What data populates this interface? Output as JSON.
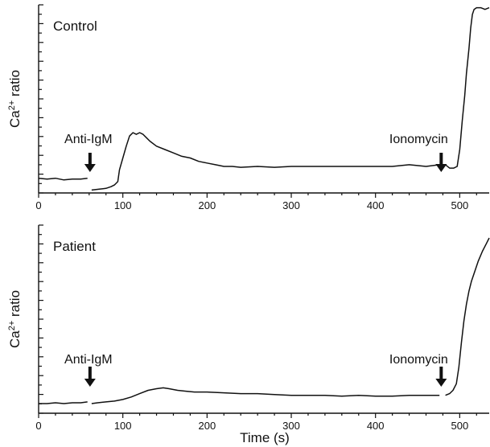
{
  "chart_data": [
    {
      "type": "line",
      "title": "Control",
      "xlabel": "",
      "ylabel": "Ca2+ ratio",
      "ylabel_parts": {
        "base": "Ca",
        "sup": "2+",
        "rest": " ratio"
      },
      "xlim": [
        0,
        535
      ],
      "ylim": [
        0,
        1
      ],
      "xticks": [
        0,
        100,
        200,
        300,
        400,
        500
      ],
      "ytick_count": 20,
      "annotations": [
        {
          "label": "Anti-IgM",
          "x": 61
        },
        {
          "label": "Ionomycin",
          "x": 478
        }
      ],
      "segments": [
        {
          "x": [
            0,
            10,
            20,
            30,
            40,
            50,
            58
          ],
          "y": [
            0.03,
            0.025,
            0.03,
            0.02,
            0.025,
            0.025,
            0.03
          ]
        },
        {
          "x": [
            63,
            72,
            80,
            86,
            90,
            94,
            96,
            100,
            104,
            108,
            112,
            116,
            120,
            124,
            128,
            132,
            140,
            150,
            160,
            170,
            180,
            190,
            200,
            210,
            220,
            230,
            240,
            260,
            280,
            300,
            320,
            340,
            360,
            380,
            400,
            420,
            440,
            460,
            476
          ],
          "y": [
            -0.04,
            -0.035,
            -0.03,
            -0.02,
            -0.01,
            0.01,
            0.08,
            0.15,
            0.22,
            0.28,
            0.3,
            0.29,
            0.3,
            0.29,
            0.27,
            0.25,
            0.22,
            0.2,
            0.18,
            0.16,
            0.15,
            0.13,
            0.12,
            0.11,
            0.1,
            0.1,
            0.095,
            0.1,
            0.095,
            0.1,
            0.1,
            0.1,
            0.1,
            0.1,
            0.1,
            0.1,
            0.11,
            0.1,
            0.11
          ]
        },
        {
          "x": [
            483,
            488,
            493,
            497,
            500,
            503,
            506,
            508,
            511,
            513,
            515,
            517,
            520,
            525,
            530,
            535
          ],
          "y": [
            0.11,
            0.09,
            0.09,
            0.1,
            0.2,
            0.37,
            0.52,
            0.65,
            0.8,
            0.92,
            1.0,
            1.03,
            1.04,
            1.04,
            1.03,
            1.04
          ]
        }
      ]
    },
    {
      "type": "line",
      "title": "Patient",
      "xlabel": "Time (s)",
      "ylabel": "Ca2+ ratio",
      "ylabel_parts": {
        "base": "Ca",
        "sup": "2+",
        "rest": " ratio"
      },
      "xlim": [
        0,
        535
      ],
      "ylim": [
        0,
        1
      ],
      "xticks": [
        0,
        100,
        200,
        300,
        400,
        500
      ],
      "ytick_count": 20,
      "annotations": [
        {
          "label": "Anti-IgM",
          "x": 61
        },
        {
          "label": "Ionomycin",
          "x": 478
        }
      ],
      "segments": [
        {
          "x": [
            0,
            10,
            20,
            30,
            40,
            50,
            58
          ],
          "y": [
            0.0,
            0.0,
            0.005,
            0.0,
            0.005,
            0.005,
            0.01
          ]
        },
        {
          "x": [
            63,
            70,
            80,
            90,
            100,
            110,
            120,
            130,
            140,
            148,
            155,
            165,
            175,
            185,
            200,
            220,
            240,
            260,
            280,
            300,
            320,
            340,
            360,
            380,
            400,
            420,
            440,
            460,
            476
          ],
          "y": [
            0.0,
            0.005,
            0.01,
            0.015,
            0.025,
            0.04,
            0.06,
            0.08,
            0.09,
            0.095,
            0.09,
            0.08,
            0.075,
            0.07,
            0.07,
            0.065,
            0.06,
            0.06,
            0.055,
            0.05,
            0.05,
            0.05,
            0.045,
            0.05,
            0.045,
            0.045,
            0.05,
            0.05,
            0.05
          ]
        },
        {
          "x": [
            483,
            488,
            492,
            496,
            499,
            502,
            505,
            508,
            511,
            514,
            518,
            522,
            527,
            532,
            535
          ],
          "y": [
            0.05,
            0.06,
            0.08,
            0.12,
            0.22,
            0.37,
            0.5,
            0.6,
            0.68,
            0.74,
            0.8,
            0.86,
            0.92,
            0.97,
            1.0
          ]
        }
      ]
    }
  ]
}
